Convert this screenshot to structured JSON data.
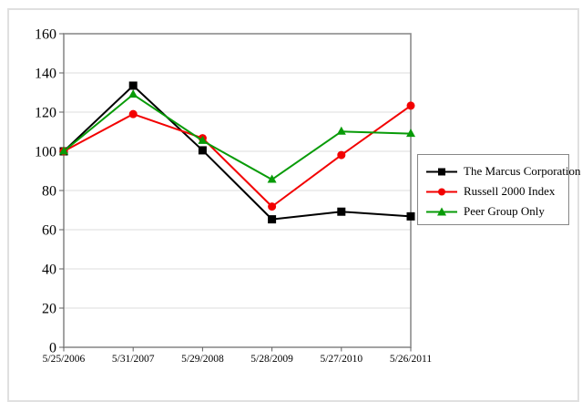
{
  "chart_data": {
    "type": "line",
    "title": "",
    "xlabel": "",
    "ylabel": "",
    "categories": [
      "5/25/2006",
      "5/31/2007",
      "5/29/2008",
      "5/28/2009",
      "5/27/2010",
      "5/26/2011"
    ],
    "series": [
      {
        "name": "The Marcus Corporation",
        "color": "#000000",
        "marker": "square",
        "values": [
          100,
          133.5,
          100.5,
          65.3,
          69.2,
          66.8
        ]
      },
      {
        "name": "Russell 2000 Index",
        "color": "#f20000",
        "marker": "circle",
        "values": [
          100,
          119.0,
          106.7,
          71.8,
          98.1,
          123.3
        ]
      },
      {
        "name": "Peer Group Only",
        "color": "#089b08",
        "marker": "triangle",
        "values": [
          100,
          129.0,
          105.4,
          85.6,
          110.1,
          109.0
        ]
      }
    ],
    "ylim": [
      0,
      160
    ],
    "yticks": [
      0,
      20,
      40,
      60,
      80,
      100,
      120,
      140,
      160
    ],
    "grid": "horizontal",
    "legend_position": "right-middle",
    "colors": {
      "background": "#ffffff",
      "gridline": "#dcdcdc",
      "plot_border": "#8c8c8c",
      "tick": "#606060",
      "outer_frame": "#e0e0e0",
      "text": "#000000"
    }
  }
}
